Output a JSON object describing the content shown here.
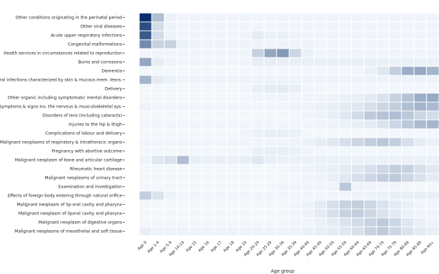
{
  "chart_data": {
    "type": "heatmap",
    "xlabel": "Age group",
    "ylabel": "",
    "grid": false,
    "colormap": {
      "low": "#f7fbff",
      "high": "#08306b"
    },
    "x": [
      "Age 0",
      "Age 1-4",
      "Age 5-9",
      "Age 10-14",
      "Age 15",
      "Age 16",
      "Age 17",
      "Age 18",
      "Age 19",
      "Age 20-24",
      "Age 25-29",
      "Age 30-34",
      "Age 35-39",
      "Age 40-44",
      "Age 45-49",
      "Age 50-54",
      "Age 55-59",
      "Age 60-64",
      "Age 65-69",
      "Age 70-74",
      "Age 75-79",
      "Age 80-84",
      "Age 85-89",
      "Age 90+"
    ],
    "y": [
      "Other conditions originating in the perinatal period",
      "Other viral diseases",
      "Acute upper respiratory infections",
      "Congenital malformations",
      "Health services in circumstances related to reproduction",
      "Burns and corrosions",
      "Dementia",
      "Viral infections characterized by skin & mucous mem. lesns.",
      "Delivery",
      "Other organic including symptomatic mental disorders",
      "Symptoms & signs inv. the nervous & musculoskeletal sys.",
      "Disorders of lens (including cataracts)",
      "Injuries to the hip & thigh",
      "Complications of labour and delivery",
      "Malignant neoplasms of respiratory & intrathoracic organs",
      "Pregnancy with abortive outcome",
      "Malignant neoplasm of bone and articular cartilage",
      "Rheumatic heart disease",
      "Malignant neoplasms of urinary tract",
      "Examination and investigation",
      "Effects of foreign body entering through natural orifice",
      "Malignant neoplasm of lip-oral cavity and pharynx",
      "Malignant neoplasm of liporal cavity and pharynx",
      "Malignant neoplasm of digestive organs",
      "Malignant neoplasms of mesothelial and soft tissue"
    ],
    "values": [
      [
        1.0,
        0.3,
        0.04,
        0.03,
        0.03,
        0.03,
        0.03,
        0.03,
        0.03,
        0.03,
        0.03,
        0.03,
        0.03,
        0.03,
        0.03,
        0.03,
        0.03,
        0.03,
        0.03,
        0.03,
        0.03,
        0.03,
        0.03,
        0.03
      ],
      [
        0.85,
        0.15,
        0.04,
        0.03,
        0.03,
        0.03,
        0.03,
        0.03,
        0.03,
        0.03,
        0.03,
        0.03,
        0.03,
        0.03,
        0.03,
        0.03,
        0.03,
        0.03,
        0.03,
        0.03,
        0.03,
        0.03,
        0.03,
        0.03
      ],
      [
        0.8,
        0.15,
        0.04,
        0.03,
        0.03,
        0.03,
        0.03,
        0.03,
        0.03,
        0.08,
        0.05,
        0.05,
        0.04,
        0.03,
        0.03,
        0.03,
        0.03,
        0.03,
        0.03,
        0.03,
        0.03,
        0.03,
        0.03,
        0.03
      ],
      [
        0.55,
        0.2,
        0.2,
        0.05,
        0.04,
        0.04,
        0.04,
        0.04,
        0.04,
        0.04,
        0.04,
        0.04,
        0.04,
        0.04,
        0.03,
        0.03,
        0.03,
        0.03,
        0.03,
        0.03,
        0.03,
        0.03,
        0.03,
        0.03
      ],
      [
        0.03,
        0.03,
        0.03,
        0.03,
        0.03,
        0.03,
        0.03,
        0.03,
        0.03,
        0.2,
        0.42,
        0.48,
        0.18,
        0.05,
        0.03,
        0.03,
        0.03,
        0.03,
        0.03,
        0.03,
        0.03,
        0.03,
        0.03,
        0.03
      ],
      [
        0.42,
        0.07,
        0.04,
        0.03,
        0.03,
        0.03,
        0.03,
        0.03,
        0.03,
        0.07,
        0.07,
        0.06,
        0.06,
        0.06,
        0.06,
        0.06,
        0.06,
        0.06,
        0.06,
        0.05,
        0.05,
        0.05,
        0.05,
        0.05
      ],
      [
        0.02,
        0.02,
        0.02,
        0.02,
        0.02,
        0.02,
        0.02,
        0.02,
        0.02,
        0.02,
        0.02,
        0.02,
        0.02,
        0.02,
        0.02,
        0.02,
        0.02,
        0.03,
        0.05,
        0.1,
        0.22,
        0.38,
        0.4,
        0.35
      ],
      [
        0.35,
        0.08,
        0.05,
        0.04,
        0.04,
        0.04,
        0.04,
        0.04,
        0.04,
        0.04,
        0.04,
        0.04,
        0.04,
        0.04,
        0.04,
        0.04,
        0.04,
        0.04,
        0.04,
        0.04,
        0.04,
        0.04,
        0.04,
        0.04
      ],
      [
        0.02,
        0.02,
        0.02,
        0.02,
        0.02,
        0.02,
        0.02,
        0.02,
        0.03,
        0.06,
        0.08,
        0.08,
        0.06,
        0.03,
        0.02,
        0.02,
        0.02,
        0.02,
        0.02,
        0.02,
        0.02,
        0.02,
        0.02,
        0.02
      ],
      [
        0.02,
        0.02,
        0.02,
        0.02,
        0.02,
        0.02,
        0.02,
        0.02,
        0.02,
        0.03,
        0.03,
        0.03,
        0.03,
        0.03,
        0.03,
        0.04,
        0.05,
        0.06,
        0.08,
        0.12,
        0.2,
        0.28,
        0.38,
        0.4
      ],
      [
        0.04,
        0.03,
        0.03,
        0.03,
        0.03,
        0.03,
        0.03,
        0.03,
        0.03,
        0.03,
        0.03,
        0.03,
        0.04,
        0.04,
        0.05,
        0.06,
        0.08,
        0.1,
        0.14,
        0.18,
        0.22,
        0.3,
        0.35,
        0.32
      ],
      [
        0.02,
        0.02,
        0.02,
        0.02,
        0.02,
        0.02,
        0.02,
        0.02,
        0.02,
        0.02,
        0.02,
        0.02,
        0.02,
        0.03,
        0.04,
        0.06,
        0.1,
        0.16,
        0.24,
        0.28,
        0.3,
        0.25,
        0.18,
        0.15
      ],
      [
        0.03,
        0.03,
        0.03,
        0.03,
        0.03,
        0.03,
        0.03,
        0.03,
        0.03,
        0.03,
        0.03,
        0.03,
        0.03,
        0.03,
        0.04,
        0.04,
        0.05,
        0.06,
        0.08,
        0.12,
        0.18,
        0.25,
        0.32,
        0.35
      ],
      [
        0.02,
        0.02,
        0.02,
        0.02,
        0.02,
        0.02,
        0.02,
        0.02,
        0.03,
        0.05,
        0.06,
        0.06,
        0.05,
        0.02,
        0.02,
        0.02,
        0.02,
        0.02,
        0.02,
        0.02,
        0.02,
        0.02,
        0.02,
        0.02
      ],
      [
        0.03,
        0.03,
        0.03,
        0.03,
        0.03,
        0.03,
        0.03,
        0.03,
        0.03,
        0.03,
        0.03,
        0.03,
        0.04,
        0.05,
        0.07,
        0.1,
        0.14,
        0.18,
        0.22,
        0.26,
        0.22,
        0.14,
        0.08,
        0.05
      ],
      [
        0.02,
        0.02,
        0.02,
        0.02,
        0.02,
        0.02,
        0.02,
        0.02,
        0.02,
        0.05,
        0.06,
        0.06,
        0.05,
        0.03,
        0.02,
        0.02,
        0.02,
        0.02,
        0.02,
        0.02,
        0.02,
        0.02,
        0.02,
        0.02
      ],
      [
        0.04,
        0.1,
        0.12,
        0.3,
        0.06,
        0.06,
        0.06,
        0.06,
        0.06,
        0.1,
        0.06,
        0.05,
        0.05,
        0.05,
        0.05,
        0.05,
        0.05,
        0.05,
        0.05,
        0.05,
        0.05,
        0.05,
        0.05,
        0.05
      ],
      [
        0.02,
        0.02,
        0.02,
        0.02,
        0.02,
        0.02,
        0.02,
        0.02,
        0.02,
        0.02,
        0.02,
        0.02,
        0.03,
        0.04,
        0.05,
        0.06,
        0.08,
        0.1,
        0.14,
        0.18,
        0.22,
        0.2,
        0.14,
        0.1
      ],
      [
        0.02,
        0.02,
        0.02,
        0.02,
        0.02,
        0.02,
        0.02,
        0.02,
        0.02,
        0.02,
        0.02,
        0.02,
        0.02,
        0.03,
        0.04,
        0.06,
        0.1,
        0.14,
        0.18,
        0.22,
        0.24,
        0.18,
        0.12,
        0.08
      ],
      [
        0.02,
        0.02,
        0.02,
        0.02,
        0.02,
        0.02,
        0.02,
        0.02,
        0.02,
        0.02,
        0.02,
        0.03,
        0.03,
        0.03,
        0.03,
        0.04,
        0.25,
        0.04,
        0.03,
        0.03,
        0.03,
        0.02,
        0.02,
        0.02
      ],
      [
        0.22,
        0.12,
        0.04,
        0.03,
        0.03,
        0.03,
        0.03,
        0.03,
        0.03,
        0.03,
        0.03,
        0.03,
        0.03,
        0.03,
        0.03,
        0.03,
        0.03,
        0.04,
        0.04,
        0.05,
        0.06,
        0.06,
        0.06,
        0.06
      ],
      [
        0.02,
        0.02,
        0.02,
        0.02,
        0.02,
        0.02,
        0.02,
        0.02,
        0.02,
        0.02,
        0.02,
        0.02,
        0.03,
        0.04,
        0.08,
        0.14,
        0.2,
        0.22,
        0.18,
        0.12,
        0.08,
        0.05,
        0.03,
        0.03
      ],
      [
        0.02,
        0.02,
        0.02,
        0.02,
        0.02,
        0.02,
        0.02,
        0.02,
        0.02,
        0.02,
        0.02,
        0.02,
        0.03,
        0.04,
        0.08,
        0.14,
        0.2,
        0.22,
        0.18,
        0.12,
        0.08,
        0.05,
        0.03,
        0.03
      ],
      [
        0.02,
        0.02,
        0.02,
        0.02,
        0.02,
        0.02,
        0.02,
        0.02,
        0.02,
        0.02,
        0.02,
        0.02,
        0.03,
        0.03,
        0.05,
        0.08,
        0.12,
        0.16,
        0.2,
        0.24,
        0.18,
        0.1,
        0.06,
        0.04
      ],
      [
        0.06,
        0.04,
        0.04,
        0.04,
        0.04,
        0.04,
        0.04,
        0.04,
        0.04,
        0.04,
        0.04,
        0.04,
        0.04,
        0.05,
        0.06,
        0.08,
        0.1,
        0.14,
        0.2,
        0.24,
        0.18,
        0.12,
        0.08,
        0.06
      ]
    ]
  }
}
